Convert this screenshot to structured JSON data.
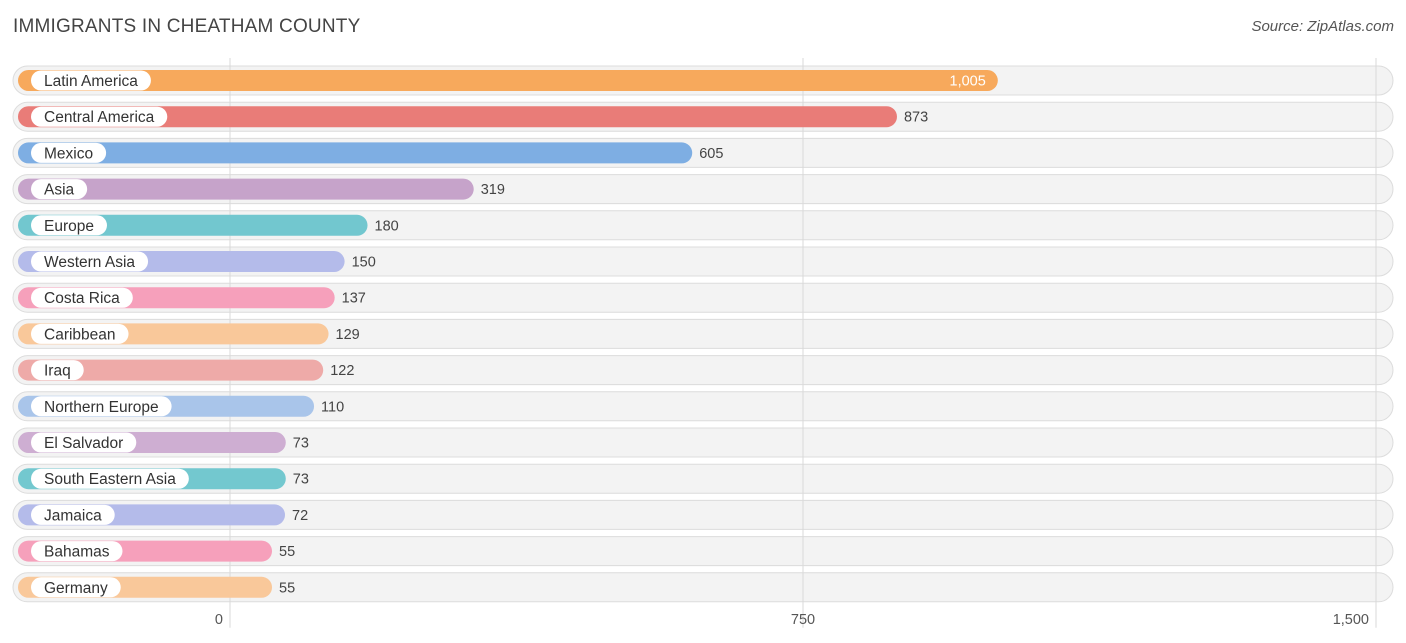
{
  "chart_data": {
    "type": "bar",
    "orientation": "horizontal",
    "title": "IMMIGRANTS IN CHEATHAM COUNTY",
    "source": "Source: ZipAtlas.com",
    "categories": [
      "Latin America",
      "Central America",
      "Mexico",
      "Asia",
      "Europe",
      "Western Asia",
      "Costa Rica",
      "Caribbean",
      "Iraq",
      "Northern Europe",
      "El Salvador",
      "South Eastern Asia",
      "Jamaica",
      "Bahamas",
      "Germany"
    ],
    "values": [
      1005,
      873,
      605,
      319,
      180,
      150,
      137,
      129,
      122,
      110,
      73,
      73,
      72,
      55,
      55
    ],
    "value_labels": [
      "1,005",
      "873",
      "605",
      "319",
      "180",
      "150",
      "137",
      "129",
      "122",
      "110",
      "73",
      "73",
      "72",
      "55",
      "55"
    ],
    "colors": [
      "#f7a95c",
      "#e97c78",
      "#7eaee3",
      "#c6a3ca",
      "#72c7cf",
      "#b4bbea",
      "#f6a0bb",
      "#f9c89a",
      "#eeaaa8",
      "#a9c5ea",
      "#ceaed2",
      "#73c8cf",
      "#b4bbea",
      "#f6a0bb",
      "#f9c89a"
    ],
    "xlim": [
      0,
      1500
    ],
    "xticks": [
      0,
      750,
      1500
    ],
    "xtick_labels": [
      "0",
      "750",
      "1,500"
    ],
    "grid": true,
    "xlabel": "",
    "ylabel": ""
  }
}
